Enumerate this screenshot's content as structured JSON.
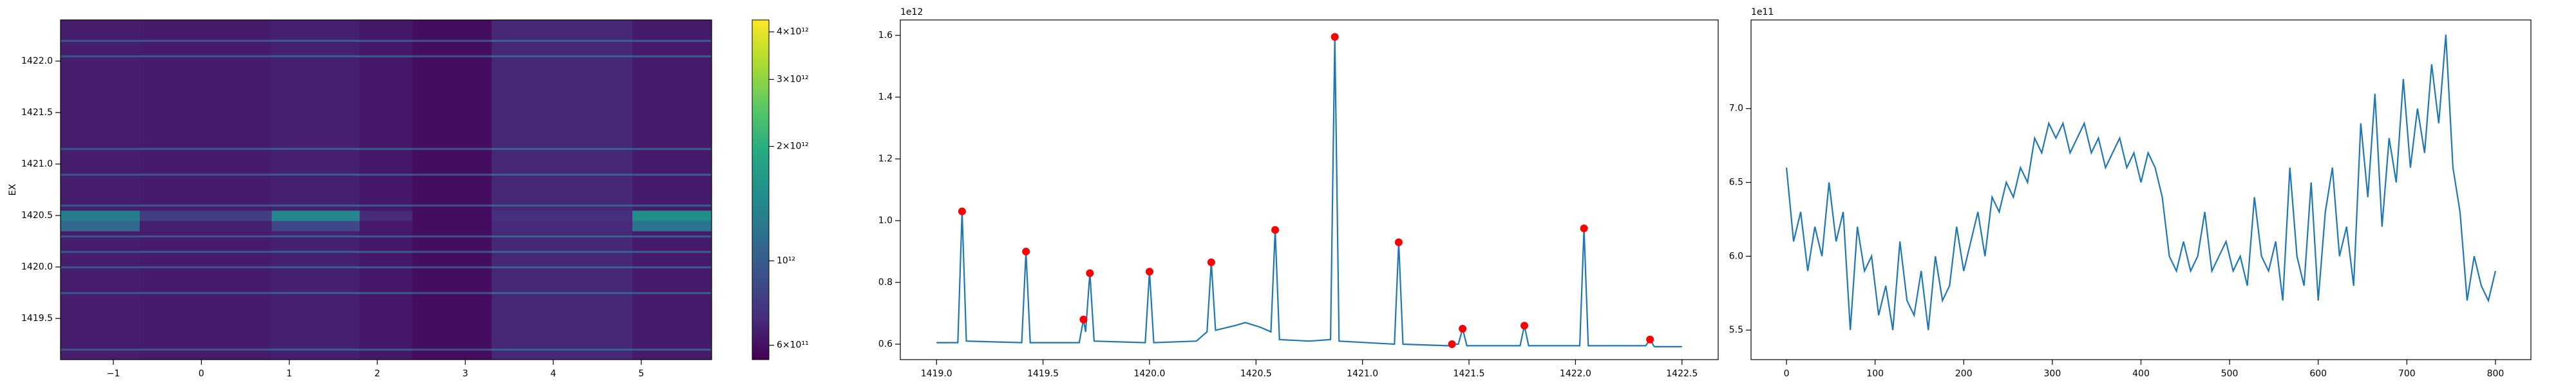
{
  "chart_data": [
    {
      "type": "heatmap",
      "ylabel": "EX",
      "colormap": "viridis",
      "color_scale": "log",
      "xlim": [
        -1.6,
        5.8
      ],
      "ylim": [
        1419.1,
        1422.4
      ],
      "xticks": [
        {
          "value": -1,
          "label": "−1"
        },
        0,
        1,
        2,
        3,
        4,
        5
      ],
      "yticks": [
        1419.5,
        {
          "value": 1420,
          "label": "1420.0"
        },
        1420.5,
        {
          "value": 1421,
          "label": "1421.0"
        },
        1421.5,
        {
          "value": 1422,
          "label": "1422.0"
        }
      ],
      "x_edges": [
        -1.6,
        -0.7,
        0.8,
        1.8,
        2.4,
        3.3,
        4.9,
        5.8
      ],
      "y_edges": [
        1419.1,
        1419.19,
        1419.21,
        1419.74,
        1419.76,
        1419.99,
        1420.01,
        1420.14,
        1420.16,
        1420.29,
        1420.31,
        1420.35,
        1420.45,
        1420.55,
        1420.59,
        1420.61,
        1420.89,
        1420.91,
        1421.14,
        1421.16,
        1422.04,
        1422.06,
        1422.19,
        1422.21,
        1422.4
      ],
      "z": [
        [
          650000000000.0,
          640000000000.0,
          660000000000.0,
          630000000000.0,
          590000000000.0,
          690000000000.0,
          640000000000.0
        ],
        [
          950000000000.0,
          950000000000.0,
          1000000000000.0,
          1000000000000.0,
          900000000000.0,
          1050000000000.0,
          1000000000000.0
        ],
        [
          650000000000.0,
          640000000000.0,
          660000000000.0,
          630000000000.0,
          590000000000.0,
          690000000000.0,
          640000000000.0
        ],
        [
          950000000000.0,
          950000000000.0,
          1000000000000.0,
          1000000000000.0,
          900000000000.0,
          1050000000000.0,
          1000000000000.0
        ],
        [
          650000000000.0,
          640000000000.0,
          660000000000.0,
          630000000000.0,
          590000000000.0,
          690000000000.0,
          640000000000.0
        ],
        [
          950000000000.0,
          950000000000.0,
          1000000000000.0,
          1000000000000.0,
          900000000000.0,
          1050000000000.0,
          1000000000000.0
        ],
        [
          650000000000.0,
          640000000000.0,
          660000000000.0,
          630000000000.0,
          590000000000.0,
          690000000000.0,
          640000000000.0
        ],
        [
          950000000000.0,
          950000000000.0,
          1000000000000.0,
          1000000000000.0,
          900000000000.0,
          1050000000000.0,
          1000000000000.0
        ],
        [
          650000000000.0,
          640000000000.0,
          660000000000.0,
          630000000000.0,
          590000000000.0,
          690000000000.0,
          640000000000.0
        ],
        [
          950000000000.0,
          950000000000.0,
          1000000000000.0,
          1000000000000.0,
          900000000000.0,
          1050000000000.0,
          1000000000000.0
        ],
        [
          650000000000.0,
          640000000000.0,
          660000000000.0,
          630000000000.0,
          590000000000.0,
          690000000000.0,
          640000000000.0
        ],
        [
          1100000000000.0,
          660000000000.0,
          850000000000.0,
          640000000000.0,
          590000000000.0,
          700000000000.0,
          1200000000000.0
        ],
        [
          1300000000000.0,
          800000000000.0,
          1400000000000.0,
          700000000000.0,
          590000000000.0,
          720000000000.0,
          1500000000000.0
        ],
        [
          650000000000.0,
          640000000000.0,
          660000000000.0,
          630000000000.0,
          590000000000.0,
          690000000000.0,
          640000000000.0
        ],
        [
          950000000000.0,
          950000000000.0,
          1000000000000.0,
          1000000000000.0,
          900000000000.0,
          1050000000000.0,
          1000000000000.0
        ],
        [
          650000000000.0,
          640000000000.0,
          660000000000.0,
          630000000000.0,
          590000000000.0,
          690000000000.0,
          640000000000.0
        ],
        [
          950000000000.0,
          950000000000.0,
          1000000000000.0,
          1000000000000.0,
          900000000000.0,
          1050000000000.0,
          1000000000000.0
        ],
        [
          650000000000.0,
          640000000000.0,
          660000000000.0,
          630000000000.0,
          590000000000.0,
          690000000000.0,
          640000000000.0
        ],
        [
          950000000000.0,
          950000000000.0,
          1000000000000.0,
          1000000000000.0,
          900000000000.0,
          1050000000000.0,
          1000000000000.0
        ],
        [
          650000000000.0,
          640000000000.0,
          660000000000.0,
          630000000000.0,
          590000000000.0,
          690000000000.0,
          640000000000.0
        ],
        [
          950000000000.0,
          950000000000.0,
          1000000000000.0,
          1000000000000.0,
          900000000000.0,
          1050000000000.0,
          1000000000000.0
        ],
        [
          650000000000.0,
          640000000000.0,
          660000000000.0,
          630000000000.0,
          590000000000.0,
          690000000000.0,
          640000000000.0
        ],
        [
          950000000000.0,
          950000000000.0,
          1000000000000.0,
          1000000000000.0,
          900000000000.0,
          1050000000000.0,
          1000000000000.0
        ],
        [
          650000000000.0,
          640000000000.0,
          660000000000.0,
          630000000000.0,
          590000000000.0,
          690000000000.0,
          640000000000.0
        ]
      ],
      "clim": [
        550000000000.0,
        4300000000000.0
      ],
      "cticks": [
        {
          "value": 600000000000.0,
          "label": "6×10¹¹"
        },
        {
          "value": 1000000000000.0,
          "label": "10¹²"
        },
        {
          "value": 2000000000000.0,
          "label": "2×10¹²"
        },
        {
          "value": 3000000000000.0,
          "label": "3×10¹²"
        },
        {
          "value": 4000000000000.0,
          "label": "4×10¹²"
        }
      ]
    },
    {
      "type": "line",
      "offset_label": "1e12",
      "color": "#1f77b4",
      "xlim": [
        1418.83,
        1422.67
      ],
      "ylim": [
        0.55,
        1.65
      ],
      "xticks": [
        {
          "value": 1419,
          "label": "1419.0"
        },
        1419.5,
        {
          "value": 1420,
          "label": "1420.0"
        },
        1420.5,
        {
          "value": 1421,
          "label": "1421.0"
        },
        1421.5,
        {
          "value": 1422,
          "label": "1422.0"
        },
        1422.5
      ],
      "yticks": [
        0.6,
        0.8,
        {
          "value": 1,
          "label": "1.0"
        },
        1.2,
        1.4,
        1.6
      ],
      "x": [
        1419.0,
        1419.1,
        1419.12,
        1419.14,
        1419.4,
        1419.42,
        1419.44,
        1419.67,
        1419.69,
        1419.7,
        1419.72,
        1419.74,
        1419.98,
        1420.0,
        1420.02,
        1420.22,
        1420.27,
        1420.29,
        1420.31,
        1420.4,
        1420.45,
        1420.52,
        1420.57,
        1420.59,
        1420.61,
        1420.75,
        1420.85,
        1420.87,
        1420.89,
        1421.15,
        1421.17,
        1421.19,
        1421.4,
        1421.42,
        1421.45,
        1421.47,
        1421.49,
        1421.74,
        1421.76,
        1421.78,
        1422.02,
        1422.04,
        1422.06,
        1422.33,
        1422.35,
        1422.37,
        1422.5
      ],
      "values": [
        0.605,
        0.605,
        1.03,
        0.61,
        0.605,
        0.9,
        0.605,
        0.605,
        0.68,
        0.64,
        0.83,
        0.61,
        0.605,
        0.835,
        0.605,
        0.61,
        0.64,
        0.865,
        0.645,
        0.66,
        0.67,
        0.655,
        0.64,
        0.97,
        0.615,
        0.61,
        0.615,
        1.595,
        0.61,
        0.6,
        0.93,
        0.6,
        0.595,
        0.6,
        0.6,
        0.65,
        0.595,
        0.595,
        0.66,
        0.595,
        0.595,
        0.975,
        0.595,
        0.595,
        0.615,
        0.592,
        0.592
      ],
      "markers": {
        "color": "#ff0000",
        "x": [
          1419.12,
          1419.42,
          1419.69,
          1419.72,
          1420.0,
          1420.29,
          1420.59,
          1420.87,
          1421.17,
          1421.42,
          1421.47,
          1421.76,
          1422.04,
          1422.35
        ],
        "values": [
          1.03,
          0.9,
          0.68,
          0.83,
          0.835,
          0.865,
          0.97,
          1.595,
          0.93,
          0.6,
          0.65,
          0.66,
          0.975,
          0.615
        ]
      }
    },
    {
      "type": "line",
      "offset_label": "1e11",
      "color": "#1f77b4",
      "xlim": [
        -40,
        840
      ],
      "ylim": [
        5.3,
        7.6
      ],
      "xticks": [
        0,
        100,
        200,
        300,
        400,
        500,
        600,
        700,
        800
      ],
      "yticks": [
        5.5,
        {
          "value": 6,
          "label": "6.0"
        },
        6.5,
        {
          "value": 7,
          "label": "7.0"
        }
      ],
      "x": [
        0,
        8,
        16,
        24,
        32,
        40,
        48,
        56,
        64,
        72,
        80,
        88,
        96,
        104,
        112,
        120,
        128,
        136,
        144,
        152,
        160,
        168,
        176,
        184,
        192,
        200,
        208,
        216,
        224,
        232,
        240,
        248,
        256,
        264,
        272,
        280,
        288,
        296,
        304,
        312,
        320,
        328,
        336,
        344,
        352,
        360,
        368,
        376,
        384,
        392,
        400,
        408,
        416,
        424,
        432,
        440,
        448,
        456,
        464,
        472,
        480,
        488,
        496,
        504,
        512,
        520,
        528,
        536,
        544,
        552,
        560,
        568,
        576,
        584,
        592,
        600,
        608,
        616,
        624,
        632,
        640,
        648,
        656,
        664,
        672,
        680,
        688,
        696,
        704,
        712,
        720,
        728,
        736,
        744,
        752,
        760,
        768,
        776,
        784,
        792,
        800
      ],
      "values": [
        6.6,
        6.1,
        6.3,
        5.9,
        6.2,
        6.0,
        6.5,
        6.1,
        6.3,
        5.5,
        6.2,
        5.9,
        6.0,
        5.6,
        5.8,
        5.5,
        6.1,
        5.7,
        5.6,
        5.9,
        5.5,
        6.0,
        5.7,
        5.8,
        6.2,
        5.9,
        6.1,
        6.3,
        6.0,
        6.4,
        6.3,
        6.5,
        6.4,
        6.6,
        6.5,
        6.8,
        6.7,
        6.9,
        6.8,
        6.9,
        6.7,
        6.8,
        6.9,
        6.7,
        6.8,
        6.6,
        6.7,
        6.8,
        6.6,
        6.7,
        6.5,
        6.7,
        6.6,
        6.4,
        6.0,
        5.9,
        6.1,
        5.9,
        6.0,
        6.3,
        5.9,
        6.0,
        6.1,
        5.9,
        6.0,
        5.8,
        6.4,
        6.0,
        5.9,
        6.1,
        5.7,
        6.6,
        6.0,
        5.8,
        6.5,
        5.7,
        6.3,
        6.6,
        6.0,
        6.2,
        5.8,
        6.9,
        6.4,
        7.1,
        6.2,
        6.8,
        6.5,
        7.2,
        6.6,
        7.0,
        6.7,
        7.3,
        6.9,
        7.5,
        6.6,
        6.3,
        5.7,
        6.0,
        5.8,
        5.7,
        5.9
      ]
    }
  ]
}
